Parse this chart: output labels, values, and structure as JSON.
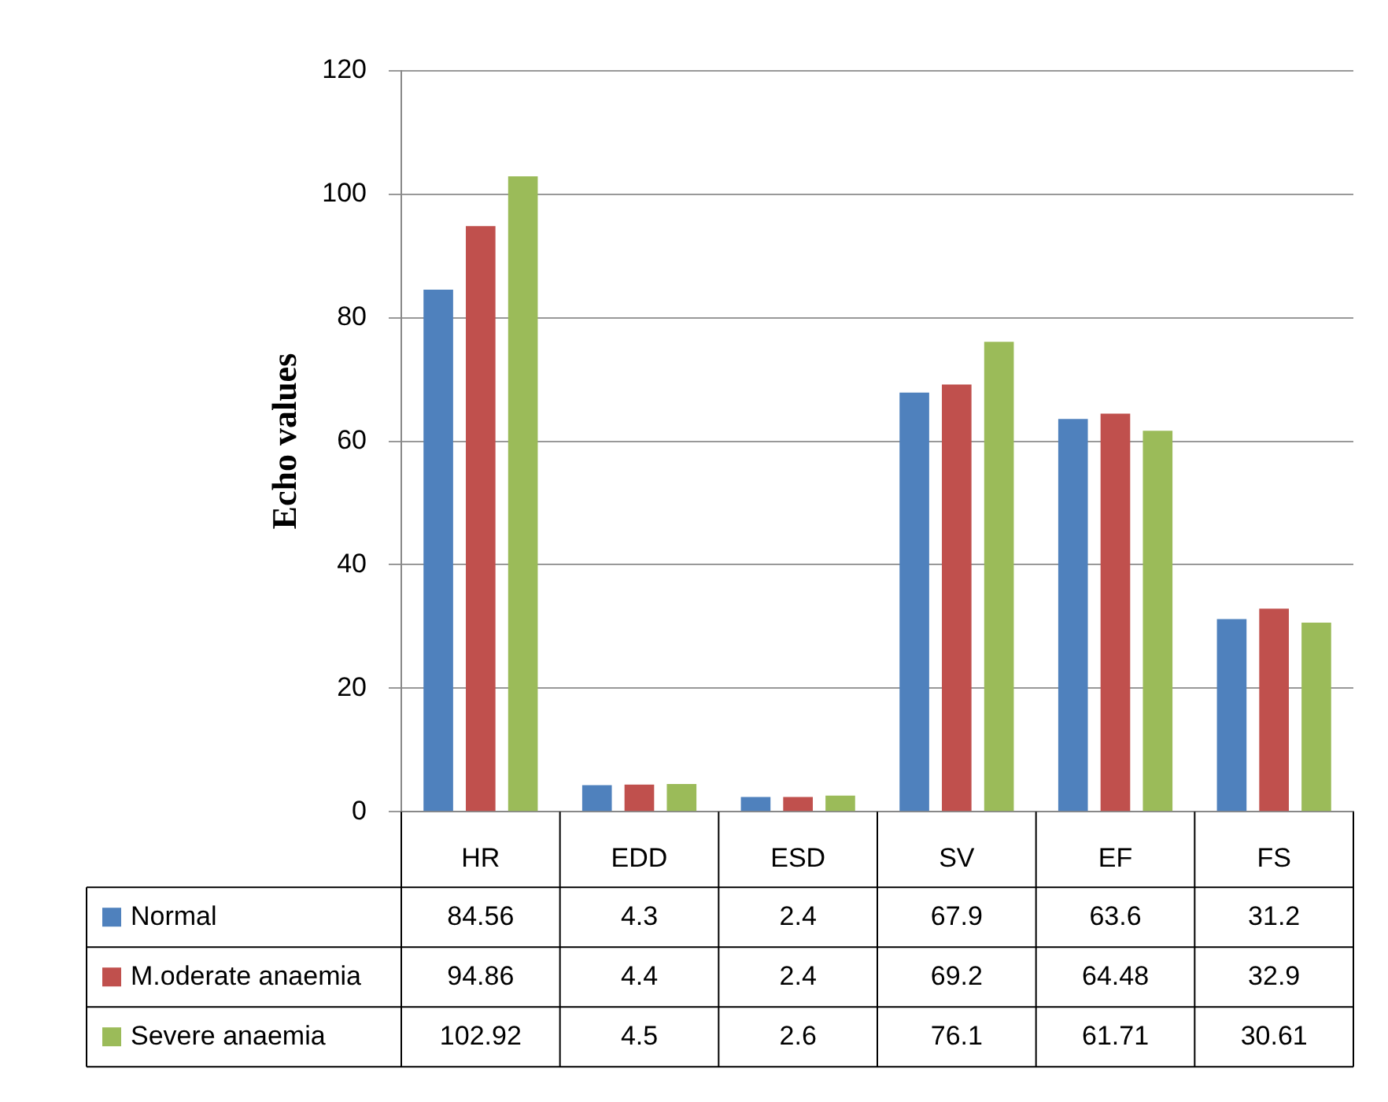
{
  "chart_data": {
    "type": "bar",
    "ylabel": "Echo values",
    "categories": [
      "HR",
      "EDD",
      "ESD",
      "SV",
      "EF",
      "FS"
    ],
    "series": [
      {
        "name": "Normal",
        "color": "#4f81bd",
        "values": [
          84.56,
          4.3,
          2.4,
          67.9,
          63.6,
          31.2
        ]
      },
      {
        "name": "M.oderate anaemia",
        "color": "#c0504d",
        "values": [
          94.86,
          4.4,
          2.4,
          69.2,
          64.48,
          32.9
        ]
      },
      {
        "name": "Severe anaemia",
        "color": "#9bbb59",
        "values": [
          102.92,
          4.5,
          2.6,
          76.1,
          61.71,
          30.61
        ]
      }
    ],
    "ylim": [
      0,
      120
    ],
    "yticks": [
      0,
      20,
      40,
      60,
      80,
      100,
      120
    ],
    "grid": "y",
    "legend": "bottom",
    "data_labels": true
  }
}
